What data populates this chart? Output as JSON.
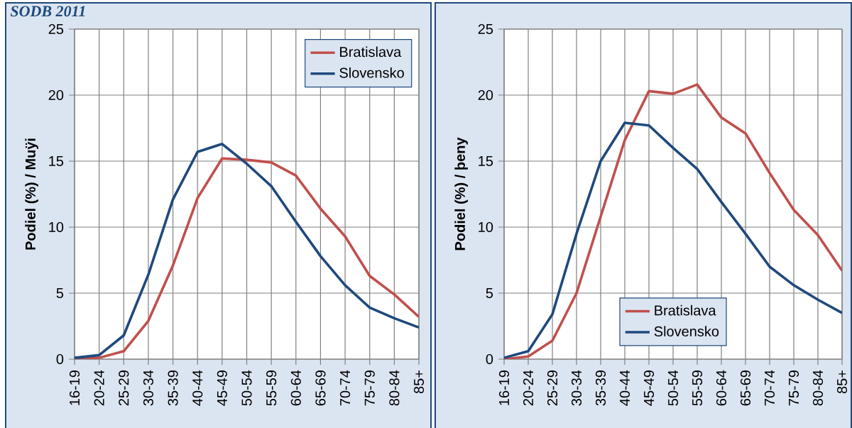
{
  "chart_data": [
    {
      "type": "line",
      "title": "SODB 2011",
      "ylabel": "Podiel (%) / Muÿi",
      "categories": [
        "16-19",
        "20-24",
        "25-29",
        "30-34",
        "35-39",
        "40-44",
        "45-49",
        "50-54",
        "55-59",
        "60-64",
        "65-69",
        "70-74",
        "75-79",
        "80-84",
        "85+"
      ],
      "series": [
        {
          "name": "Bratislava",
          "color": "#c0504d",
          "values": [
            0,
            0.1,
            0.6,
            2.9,
            7.1,
            12.2,
            15.2,
            15.1,
            14.9,
            13.9,
            11.4,
            9.3,
            6.3,
            4.9,
            3.2
          ]
        },
        {
          "name": "Slovensko",
          "color": "#1f497d",
          "values": [
            0.1,
            0.3,
            1.8,
            6.4,
            12.1,
            15.7,
            16.3,
            14.8,
            13.1,
            10.4,
            7.8,
            5.6,
            3.9,
            3.1,
            2.4
          ]
        }
      ],
      "ylim": [
        0,
        25
      ],
      "yticks": [
        0,
        5,
        10,
        15,
        20,
        25
      ],
      "grid": true,
      "legend": "top right"
    },
    {
      "type": "line",
      "ylabel": "Podiel (%) / þeny",
      "categories": [
        "16-19",
        "20-24",
        "25-29",
        "30-34",
        "35-39",
        "40-44",
        "45-49",
        "50-54",
        "55-59",
        "60-64",
        "65-69",
        "70-74",
        "75-79",
        "80-84",
        "85+"
      ],
      "series": [
        {
          "name": "Bratislava",
          "color": "#c0504d",
          "values": [
            0,
            0.2,
            1.4,
            5.0,
            10.8,
            16.6,
            20.3,
            20.1,
            20.8,
            18.3,
            17.1,
            14.1,
            11.3,
            9.4,
            6.7
          ]
        },
        {
          "name": "Slovensko",
          "color": "#1f497d",
          "values": [
            0.1,
            0.6,
            3.4,
            9.5,
            15.0,
            17.9,
            17.7,
            16.0,
            14.4,
            11.9,
            9.5,
            7.0,
            5.6,
            4.5,
            3.5
          ]
        }
      ],
      "ylim": [
        0,
        25
      ],
      "yticks": [
        0,
        5,
        10,
        15,
        20,
        25
      ],
      "grid": true,
      "legend": "bottom"
    }
  ]
}
